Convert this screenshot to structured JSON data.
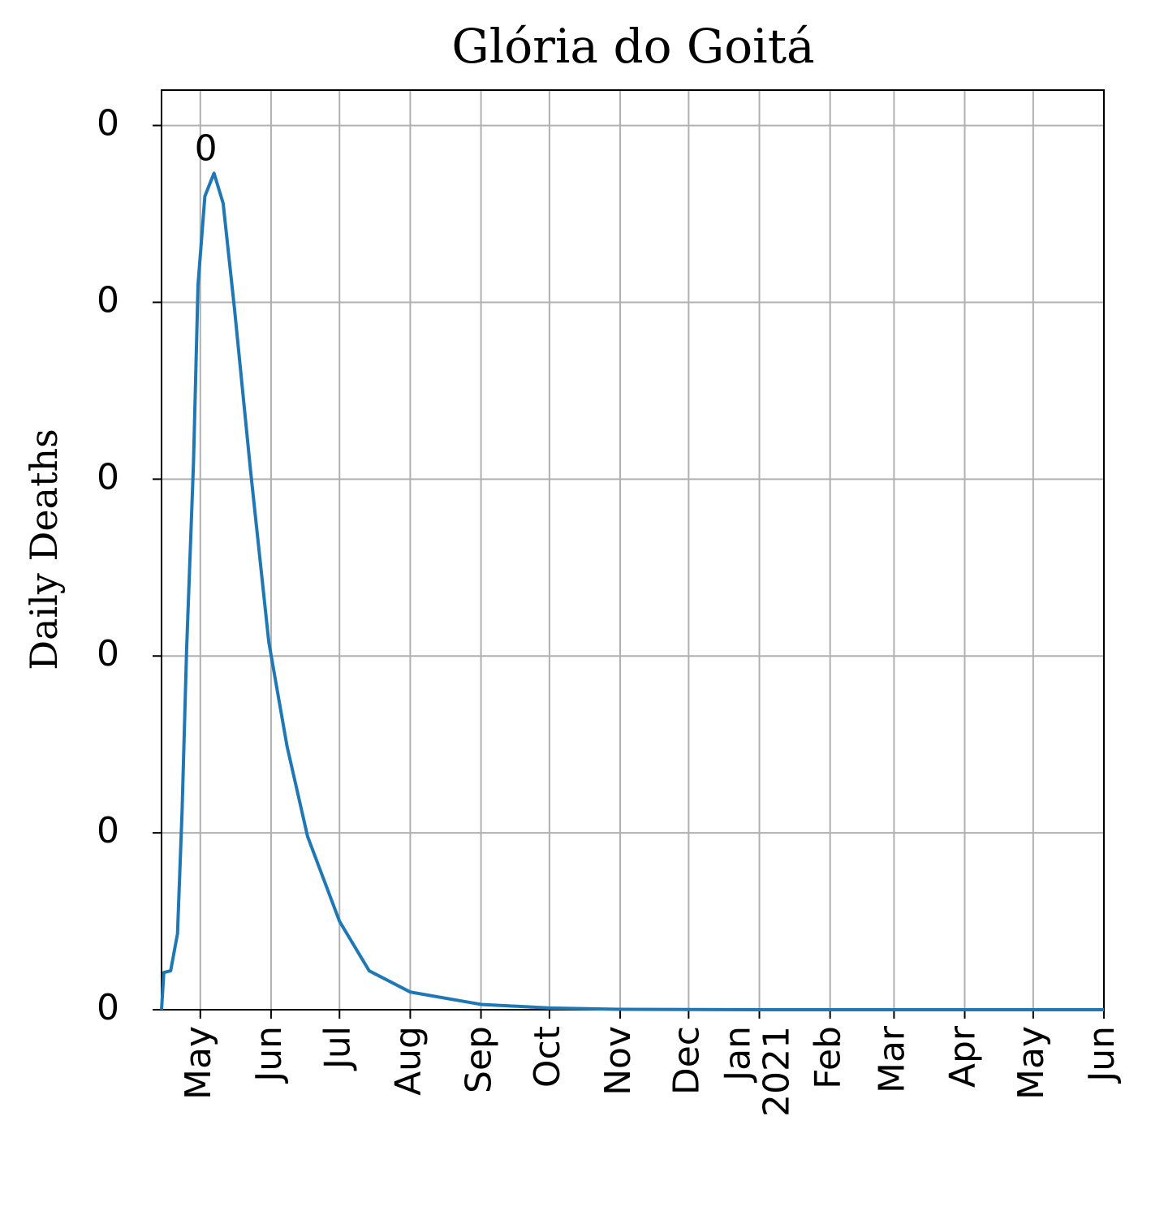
{
  "chart_data": {
    "type": "line",
    "title": "Glória do Goitá",
    "y_label": "Daily Deaths",
    "color": "#1f77b4",
    "grid": true,
    "x": [
      "2020-04-14",
      "2020-04-15",
      "2020-04-18",
      "2020-04-21",
      "2020-04-23",
      "2020-04-25",
      "2020-04-28",
      "2020-04-30",
      "2020-05-03",
      "2020-05-07",
      "2020-05-11",
      "2020-05-16",
      "2020-05-23",
      "2020-05-31",
      "2020-06-08",
      "2020-06-17",
      "2020-07-01",
      "2020-07-14",
      "2020-08-01",
      "2020-09-01",
      "2020-10-01",
      "2020-11-01",
      "2020-12-01",
      "2021-01-01",
      "2021-03-01",
      "2021-06-01"
    ],
    "values": [
      0,
      0.021,
      0.022,
      0.043,
      0.112,
      0.204,
      0.309,
      0.41,
      0.46,
      0.473,
      0.456,
      0.396,
      0.305,
      0.208,
      0.149,
      0.098,
      0.05,
      0.022,
      0.01,
      0.003,
      0.001,
      0.0002,
      0.0001,
      0,
      0,
      0
    ],
    "annotations": [
      {
        "text": "0",
        "x": "2020-05-07",
        "y": 0.473
      }
    ],
    "xlim": [
      "2020-04-14",
      "2021-06-01"
    ],
    "xticks": [
      {
        "value": "2020-05-01",
        "label": "May"
      },
      {
        "value": "2020-06-01",
        "label": "Jun"
      },
      {
        "value": "2020-07-01",
        "label": "Jul"
      },
      {
        "value": "2020-08-01",
        "label": "Aug"
      },
      {
        "value": "2020-09-01",
        "label": "Sep"
      },
      {
        "value": "2020-10-01",
        "label": "Oct"
      },
      {
        "value": "2020-11-01",
        "label": "Nov"
      },
      {
        "value": "2020-12-01",
        "label": "Dec"
      },
      {
        "value": "2021-01-01",
        "label": "Jan\n2021"
      },
      {
        "value": "2021-02-01",
        "label": "Feb"
      },
      {
        "value": "2021-03-01",
        "label": "Mar"
      },
      {
        "value": "2021-04-01",
        "label": "Apr"
      },
      {
        "value": "2021-05-01",
        "label": "May"
      },
      {
        "value": "2021-06-01",
        "label": "Jun"
      }
    ],
    "ylim": [
      0,
      0.52
    ],
    "yticks": [
      0,
      {
        "value": 0.1,
        "label": "0"
      },
      {
        "value": 0.2,
        "label": "0"
      },
      {
        "value": 0.3,
        "label": "0"
      },
      {
        "value": 0.4,
        "label": "0"
      },
      {
        "value": 0.5,
        "label": "0"
      }
    ]
  }
}
